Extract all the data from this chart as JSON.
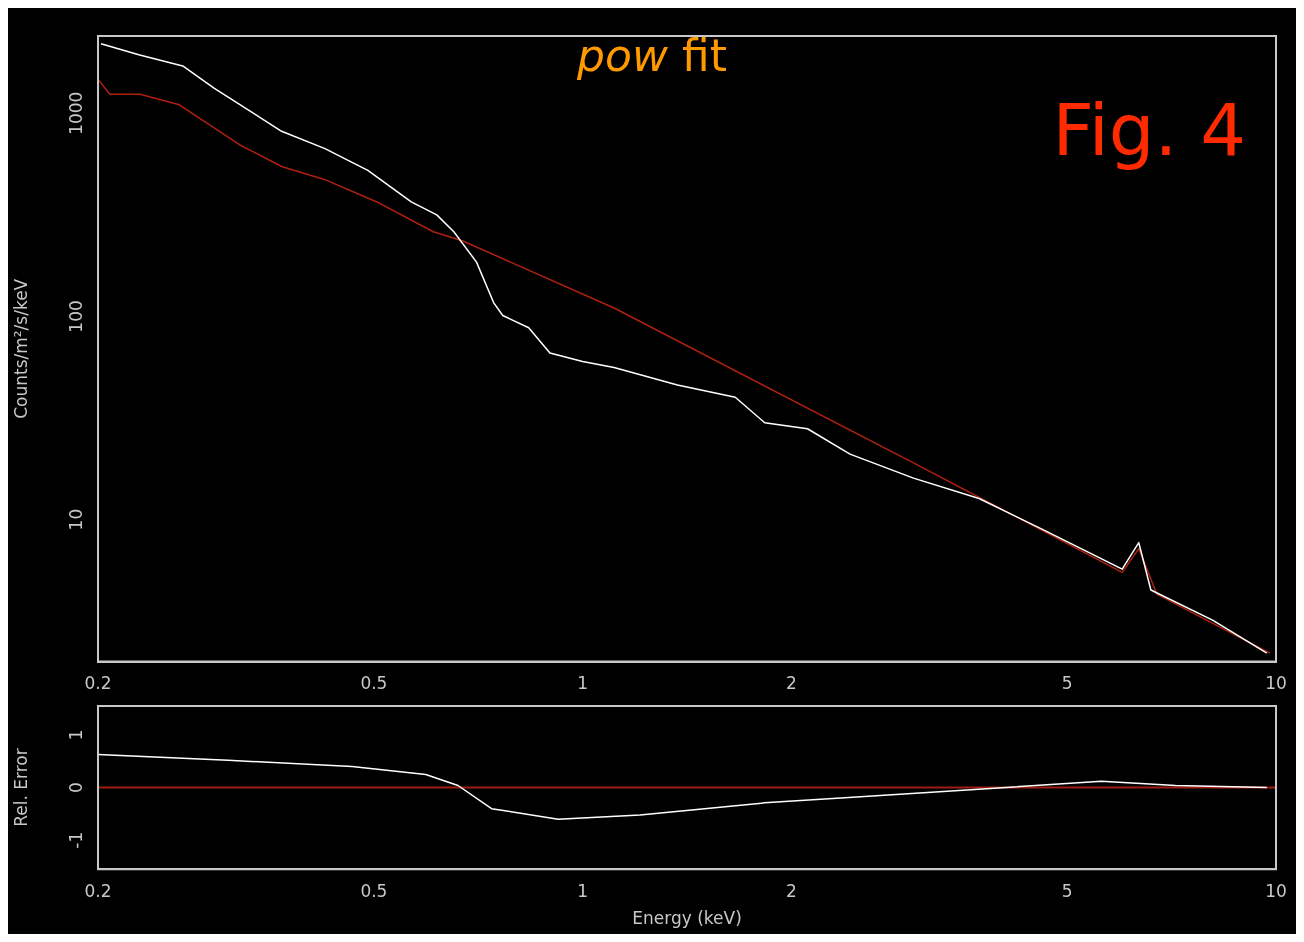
{
  "chart_data": [
    {
      "type": "line",
      "title": "pow fit",
      "ylabel": "Counts/m²/s/keV",
      "annotations": [
        "Fig. 4"
      ],
      "log": "xy",
      "xlim": [
        0.2,
        10
      ],
      "xticks": [
        0.2,
        0.5,
        1,
        2,
        5,
        10
      ],
      "ylim": [
        2,
        2400
      ],
      "yticks": [
        10,
        100,
        1000
      ],
      "series": [
        {
          "color": "#ffffff",
          "x": [
            0.202,
            0.229,
            0.265,
            0.294,
            0.368,
            0.425,
            0.49,
            0.566,
            0.616,
            0.652,
            0.703,
            0.744,
            0.767,
            0.836,
            0.897,
            1.0,
            1.11,
            1.37,
            1.66,
            1.83,
            2.11,
            2.43,
            3.0,
            3.73,
            4.62,
            6.0,
            6.34,
            6.6,
            8.1,
            9.7
          ],
          "values": [
            2200,
            1940,
            1710,
            1330,
            815,
            670,
            523,
            366,
            316,
            261,
            185,
            117,
            101,
            88,
            66,
            60,
            56,
            46,
            40,
            30,
            28,
            21,
            16,
            12.7,
            8.9,
            5.7,
            7.7,
            4.5,
            3.2,
            2.2
          ]
        },
        {
          "color": "#b02010",
          "x": [
            0.2,
            0.208,
            0.23,
            0.262,
            0.32,
            0.368,
            0.425,
            0.505,
            0.609,
            0.672,
            1.11,
            3.0,
            6.0,
            6.34,
            6.73,
            9.8
          ],
          "values": [
            1470,
            1240,
            1240,
            1100,
            700,
            547,
            471,
            366,
            261,
            235,
            110,
            19,
            5.5,
            7.2,
            4.3,
            2.2
          ]
        }
      ]
    },
    {
      "type": "line",
      "ylabel": "Rel. Error",
      "xlabel": "Energy (keV)",
      "log": "x",
      "xlim": [
        0.2,
        10
      ],
      "xticks": [
        0.2,
        0.5,
        1,
        2,
        5,
        10
      ],
      "ylim": [
        -1.55,
        1.55
      ],
      "yticks": [
        -1,
        0,
        1
      ],
      "ref_lines": [
        {
          "axis": "y",
          "value": 0,
          "color": "#a01c10"
        }
      ],
      "series": [
        {
          "color": "#ffffff",
          "x": [
            0.2,
            0.308,
            0.465,
            0.594,
            0.661,
            0.739,
            0.922,
            1.21,
            1.83,
            2.42,
            3.63,
            5.6,
            7.16,
            9.7
          ],
          "values": [
            0.63,
            0.52,
            0.4,
            0.25,
            0.04,
            -0.4,
            -0.6,
            -0.52,
            -0.29,
            -0.19,
            -0.04,
            0.12,
            0.04,
            0
          ]
        }
      ]
    }
  ]
}
